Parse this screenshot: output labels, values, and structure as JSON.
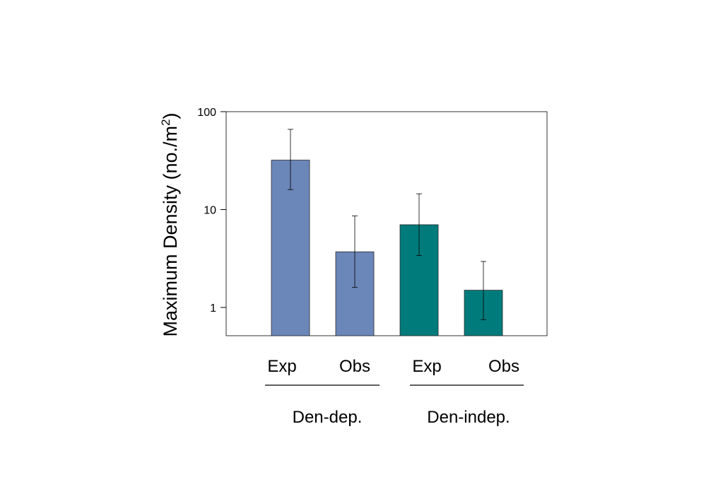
{
  "chart_data": {
    "type": "bar",
    "ylabel": "Maximum Density (no./m",
    "ylabel_superscript": "2",
    "ylabel_close": ")",
    "yscale": "log",
    "ylim": [
      0.5,
      100
    ],
    "yticks": [
      {
        "value": 1,
        "label": "1"
      },
      {
        "value": 10,
        "label": "10"
      },
      {
        "value": 100,
        "label": "100"
      }
    ],
    "categories": [
      "Exp",
      "Obs",
      "Exp",
      "Obs"
    ],
    "groups": [
      {
        "label": "Den-dep.",
        "categories": [
          0,
          1
        ]
      },
      {
        "label": "Den-indep.",
        "categories": [
          2,
          3
        ]
      }
    ],
    "values": [
      32,
      3.7,
      7,
      1.5
    ],
    "error_low": [
      16,
      1.6,
      3.4,
      0.75
    ],
    "error_high": [
      66,
      8.6,
      14.5,
      2.95
    ],
    "colors": [
      "#6b86b8",
      "#6b86b8",
      "#007b7b",
      "#007b7b"
    ],
    "grid": false
  }
}
